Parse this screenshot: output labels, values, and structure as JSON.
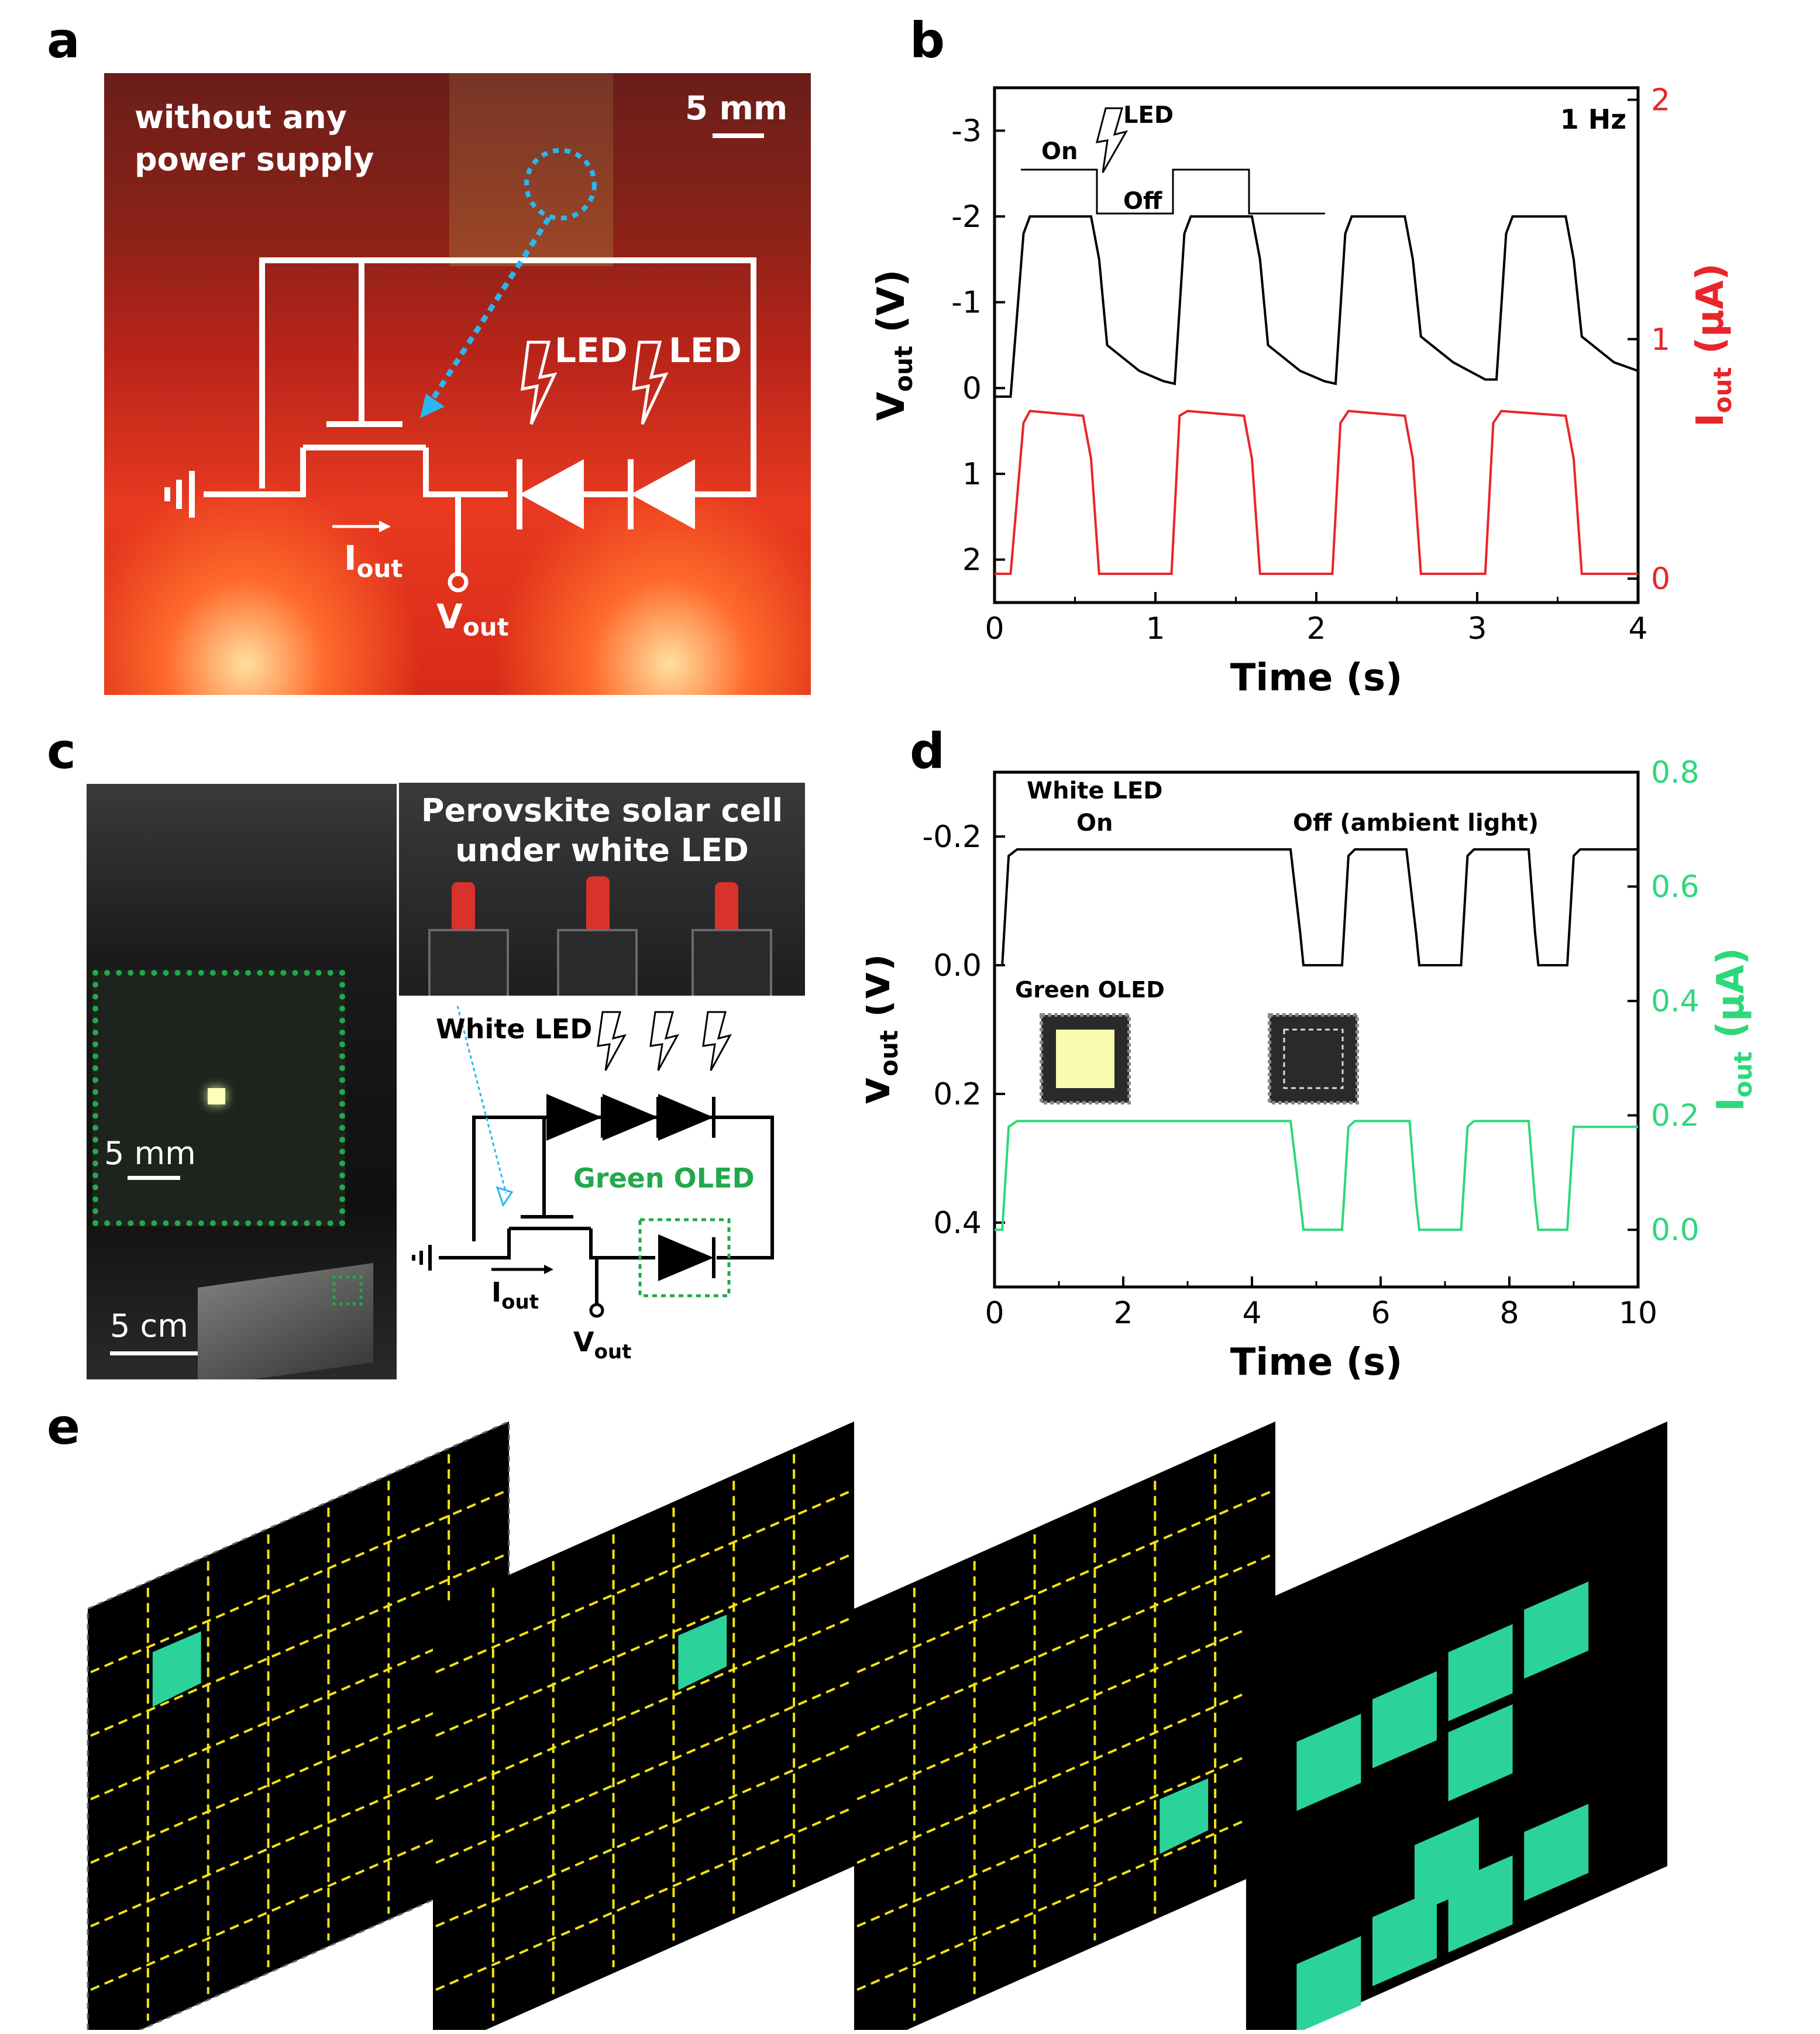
{
  "panel_labels": {
    "a": "a",
    "b": "b",
    "c": "c",
    "d": "d",
    "e": "e"
  },
  "panel_a": {
    "caption": "without any power supply",
    "caption_line1": "without any",
    "caption_line2": "power supply",
    "scale": "5 mm",
    "led1": "LED",
    "led2": "LED",
    "iout_main": "I",
    "iout_sub": "out",
    "vout_main": "V",
    "vout_sub": "out"
  },
  "panel_c": {
    "title_line1": "Perovskite solar cell",
    "title_line2": "under white LED",
    "scale_inset": "5 mm",
    "scale_main": "5 cm",
    "white_led": "White LED",
    "green_oled": "Green OLED",
    "iout_main": "I",
    "iout_sub": "out",
    "vout_main": "V",
    "vout_sub": "out"
  },
  "chart_data": [
    {
      "panel": "b",
      "type": "line",
      "xlabel": "Time (s)",
      "ylabel_left": "V_out (V)",
      "ylabel_right": "I_out (μA)",
      "xlim": [
        0,
        4
      ],
      "ylim_left_inverted": [
        -3.5,
        2.5
      ],
      "ylim_right": [
        -0.1,
        2.05
      ],
      "xticks": [
        "0",
        "1",
        "2",
        "3",
        "4"
      ],
      "yticks_left": [
        "-3",
        "-2",
        "-1",
        "0",
        "1",
        "2"
      ],
      "yticks_right": [
        "0",
        "1",
        "2"
      ],
      "annotations": {
        "freq": "1 Hz",
        "on": "On",
        "off": "Off",
        "led": "LED"
      },
      "colors": {
        "vout": "#000000",
        "iout": "#e8252a"
      },
      "series": [
        {
          "axis": "left",
          "points": [
            [
              0,
              0.1
            ],
            [
              0.1,
              0.1
            ],
            [
              0.18,
              -1.8
            ],
            [
              0.22,
              -2.0
            ],
            [
              0.6,
              -2.0
            ],
            [
              0.65,
              -1.5
            ],
            [
              0.7,
              -0.5
            ],
            [
              0.9,
              -0.2
            ],
            [
              1.05,
              -0.08
            ],
            [
              1.12,
              -0.05
            ],
            [
              1.18,
              -1.8
            ],
            [
              1.22,
              -2.0
            ],
            [
              1.6,
              -2.0
            ],
            [
              1.65,
              -1.5
            ],
            [
              1.7,
              -0.5
            ],
            [
              1.9,
              -0.2
            ],
            [
              2.05,
              -0.08
            ],
            [
              2.12,
              -0.05
            ],
            [
              2.18,
              -1.8
            ],
            [
              2.22,
              -2.0
            ],
            [
              2.55,
              -2.0
            ],
            [
              2.6,
              -1.5
            ],
            [
              2.65,
              -0.6
            ],
            [
              2.85,
              -0.3
            ],
            [
              3.05,
              -0.1
            ],
            [
              3.12,
              -0.1
            ],
            [
              3.18,
              -1.8
            ],
            [
              3.22,
              -2.0
            ],
            [
              3.55,
              -2.0
            ],
            [
              3.6,
              -1.5
            ],
            [
              3.65,
              -0.6
            ],
            [
              3.85,
              -0.3
            ],
            [
              4.0,
              -0.2
            ]
          ]
        },
        {
          "axis": "right",
          "points": [
            [
              0,
              0.02
            ],
            [
              0.1,
              0.02
            ],
            [
              0.18,
              0.65
            ],
            [
              0.22,
              0.7
            ],
            [
              0.55,
              0.68
            ],
            [
              0.6,
              0.5
            ],
            [
              0.65,
              0.02
            ],
            [
              1.1,
              0.02
            ],
            [
              1.15,
              0.68
            ],
            [
              1.2,
              0.7
            ],
            [
              1.55,
              0.68
            ],
            [
              1.6,
              0.5
            ],
            [
              1.65,
              0.02
            ],
            [
              2.1,
              0.02
            ],
            [
              2.15,
              0.65
            ],
            [
              2.2,
              0.7
            ],
            [
              2.55,
              0.68
            ],
            [
              2.6,
              0.5
            ],
            [
              2.65,
              0.02
            ],
            [
              3.05,
              0.02
            ],
            [
              3.1,
              0.65
            ],
            [
              3.15,
              0.7
            ],
            [
              3.55,
              0.68
            ],
            [
              3.6,
              0.5
            ],
            [
              3.65,
              0.02
            ],
            [
              4.0,
              0.02
            ]
          ]
        }
      ]
    },
    {
      "panel": "d",
      "type": "line",
      "xlabel": "Time (s)",
      "ylabel_left": "V_out (V)",
      "ylabel_right": "I_out (μA)",
      "xlim": [
        0,
        10
      ],
      "ylim_left_inverted": [
        -0.3,
        0.5
      ],
      "ylim_right": [
        -0.1,
        0.8
      ],
      "xticks": [
        "0",
        "2",
        "4",
        "6",
        "8",
        "10"
      ],
      "yticks_left": [
        "-0.2",
        "0.0",
        "0.2",
        "0.4"
      ],
      "yticks_right": [
        "0.0",
        "0.2",
        "0.4",
        "0.6",
        "0.8"
      ],
      "annotations": {
        "white_led": "White LED",
        "on": "On",
        "off": "Off (ambient light)",
        "green_oled": "Green OLED"
      },
      "colors": {
        "vout": "#000000",
        "iout": "#2ed87a"
      },
      "series": [
        {
          "axis": "left",
          "points": [
            [
              0,
              0.0
            ],
            [
              0.12,
              0.0
            ],
            [
              0.22,
              -0.17
            ],
            [
              0.35,
              -0.18
            ],
            [
              4.6,
              -0.18
            ],
            [
              4.75,
              -0.05
            ],
            [
              4.8,
              0.0
            ],
            [
              5.4,
              0.0
            ],
            [
              5.5,
              -0.17
            ],
            [
              5.6,
              -0.18
            ],
            [
              6.4,
              -0.18
            ],
            [
              6.55,
              -0.05
            ],
            [
              6.6,
              0.0
            ],
            [
              7.25,
              0.0
            ],
            [
              7.35,
              -0.17
            ],
            [
              7.45,
              -0.18
            ],
            [
              8.3,
              -0.18
            ],
            [
              8.4,
              -0.05
            ],
            [
              8.45,
              0.0
            ],
            [
              8.9,
              0.0
            ],
            [
              9.0,
              -0.17
            ],
            [
              9.1,
              -0.18
            ],
            [
              10,
              -0.18
            ]
          ]
        },
        {
          "axis": "right",
          "points": [
            [
              0,
              0.0
            ],
            [
              0.12,
              0.0
            ],
            [
              0.22,
              0.18
            ],
            [
              0.35,
              0.19
            ],
            [
              4.6,
              0.19
            ],
            [
              4.75,
              0.05
            ],
            [
              4.8,
              0.0
            ],
            [
              5.4,
              0.0
            ],
            [
              5.5,
              0.18
            ],
            [
              5.6,
              0.19
            ],
            [
              6.45,
              0.19
            ],
            [
              6.55,
              0.05
            ],
            [
              6.6,
              0.0
            ],
            [
              7.25,
              0.0
            ],
            [
              7.35,
              0.18
            ],
            [
              7.45,
              0.19
            ],
            [
              8.3,
              0.19
            ],
            [
              8.4,
              0.05
            ],
            [
              8.45,
              0.0
            ],
            [
              8.9,
              0.0
            ],
            [
              9.0,
              0.18
            ],
            [
              9.1,
              0.18
            ],
            [
              10,
              0.18
            ]
          ]
        }
      ]
    }
  ],
  "panel_e": {
    "panels": 4,
    "grid_color": "#f2e313",
    "pixel_color": "#2bd39a"
  }
}
